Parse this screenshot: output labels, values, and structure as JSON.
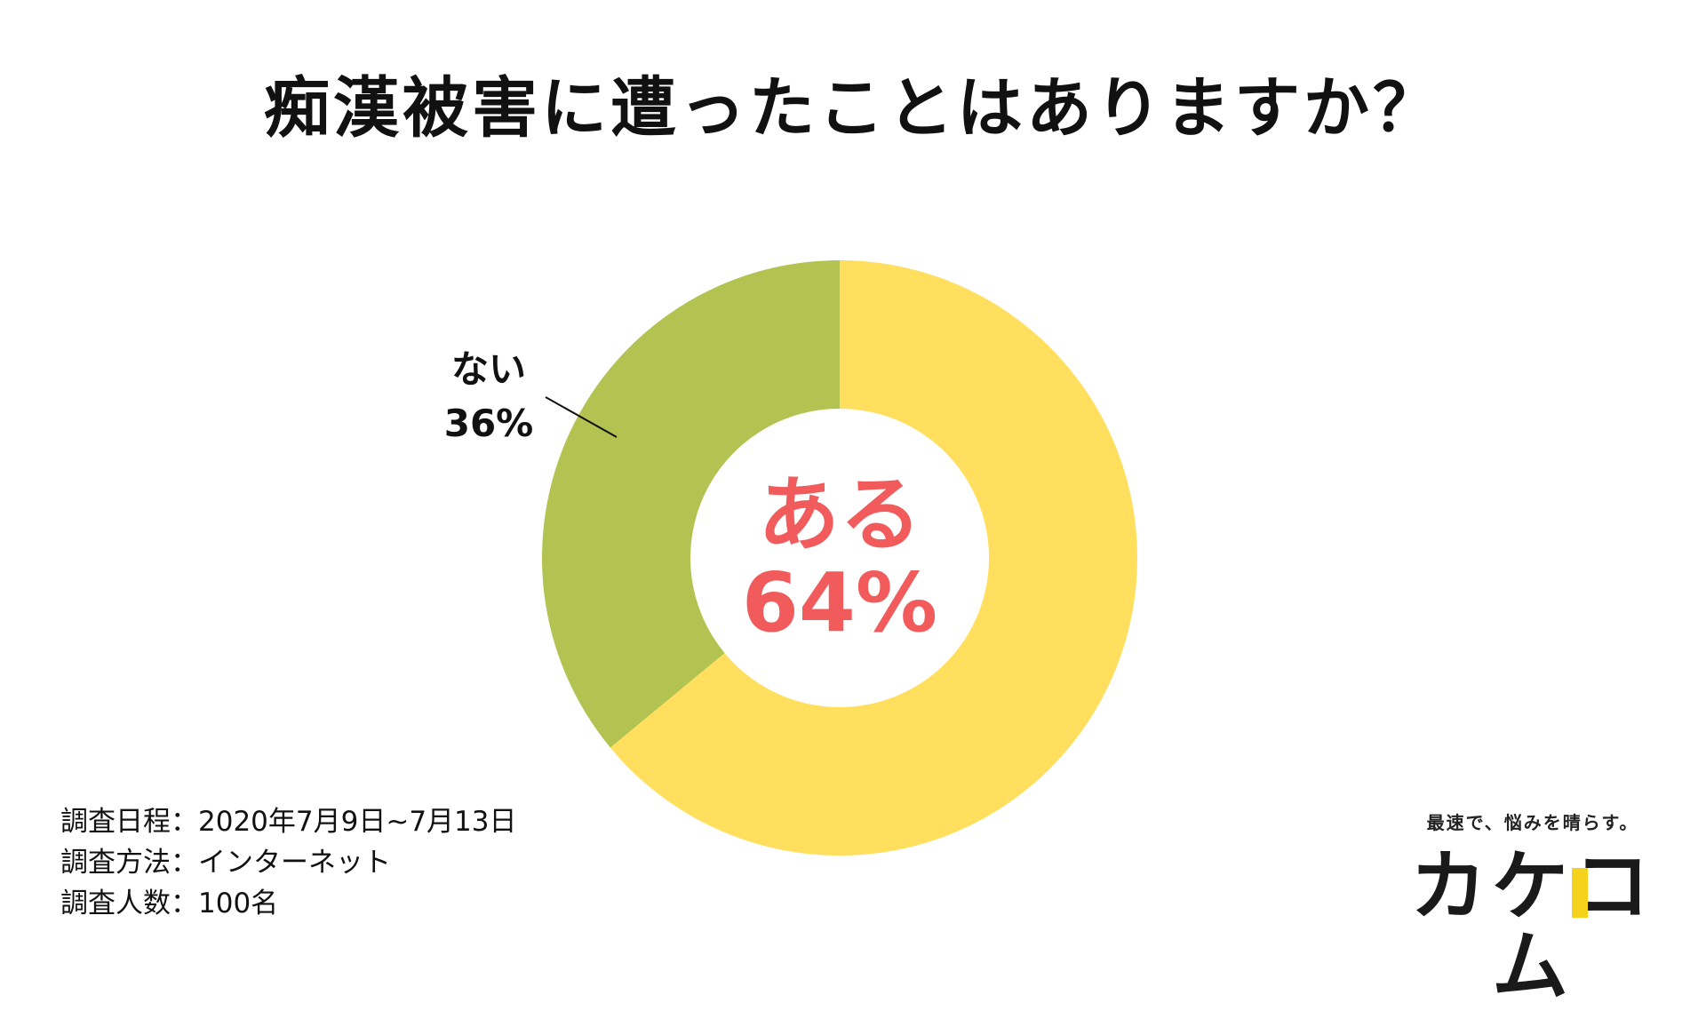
{
  "chart_data": {
    "type": "pie",
    "title": "痴漢被害に遭ったことはありますか？",
    "categories": [
      "ある",
      "ない"
    ],
    "values": [
      64,
      36
    ],
    "value_labels": [
      "64%",
      "36%"
    ],
    "colors": [
      "#ffdf5d",
      "#b2c352"
    ],
    "donut": true,
    "legend": "none"
  },
  "survey": {
    "lines": [
      "調査日程：2020年7月9日~7月13日",
      "調査方法：インターネット",
      "調査人数：100名"
    ]
  },
  "brand": {
    "tagline": "最速で、悩みを晴らす。",
    "logo_text": "カケコム",
    "accent": "#f5d31c"
  },
  "accent_text_color": "#f15b5b"
}
